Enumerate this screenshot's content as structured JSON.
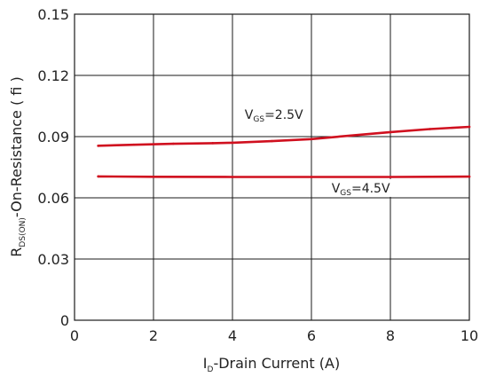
{
  "chart_data": {
    "type": "line",
    "xlabel": {
      "main": "I",
      "sub": "D",
      "rest": "-Drain Current (A)"
    },
    "ylabel": {
      "main": "R",
      "sub": "DS(ON)",
      "rest": "-On-Resistance ( fi )"
    },
    "xlim": [
      0,
      10
    ],
    "ylim": [
      0,
      0.15
    ],
    "xticks": [
      "0",
      "2",
      "4",
      "6",
      "8",
      "10"
    ],
    "xtick_values": [
      0,
      2,
      4,
      6,
      8,
      10
    ],
    "yticks": [
      "0",
      "0.03",
      "0.06",
      "0.09",
      "0.12",
      "0.15"
    ],
    "ytick_values": [
      0,
      0.03,
      0.06,
      0.09,
      0.12,
      0.15
    ],
    "grid": true,
    "series_color": "#d0101f",
    "series": [
      {
        "x": [
          0.6,
          1.5,
          2.5,
          3.5,
          4.0,
          5.0,
          6.0,
          7.0,
          8.0,
          9.0,
          10.0
        ],
        "values": [
          0.0855,
          0.086,
          0.0865,
          0.0868,
          0.087,
          0.0878,
          0.0888,
          0.0905,
          0.0922,
          0.0937,
          0.0948
        ]
      },
      {
        "x": [
          0.6,
          2.0,
          4.0,
          6.0,
          8.0,
          10.0
        ],
        "values": [
          0.0705,
          0.0703,
          0.0702,
          0.0702,
          0.0702,
          0.0704
        ]
      }
    ],
    "annotations": [
      {
        "main": "V",
        "sub": "GS",
        "rest": "=2.5V",
        "x": 5.05,
        "y": 0.0995
      },
      {
        "main": "V",
        "sub": "GS",
        "rest": "=4.5V",
        "x": 7.25,
        "y": 0.0635
      }
    ]
  }
}
